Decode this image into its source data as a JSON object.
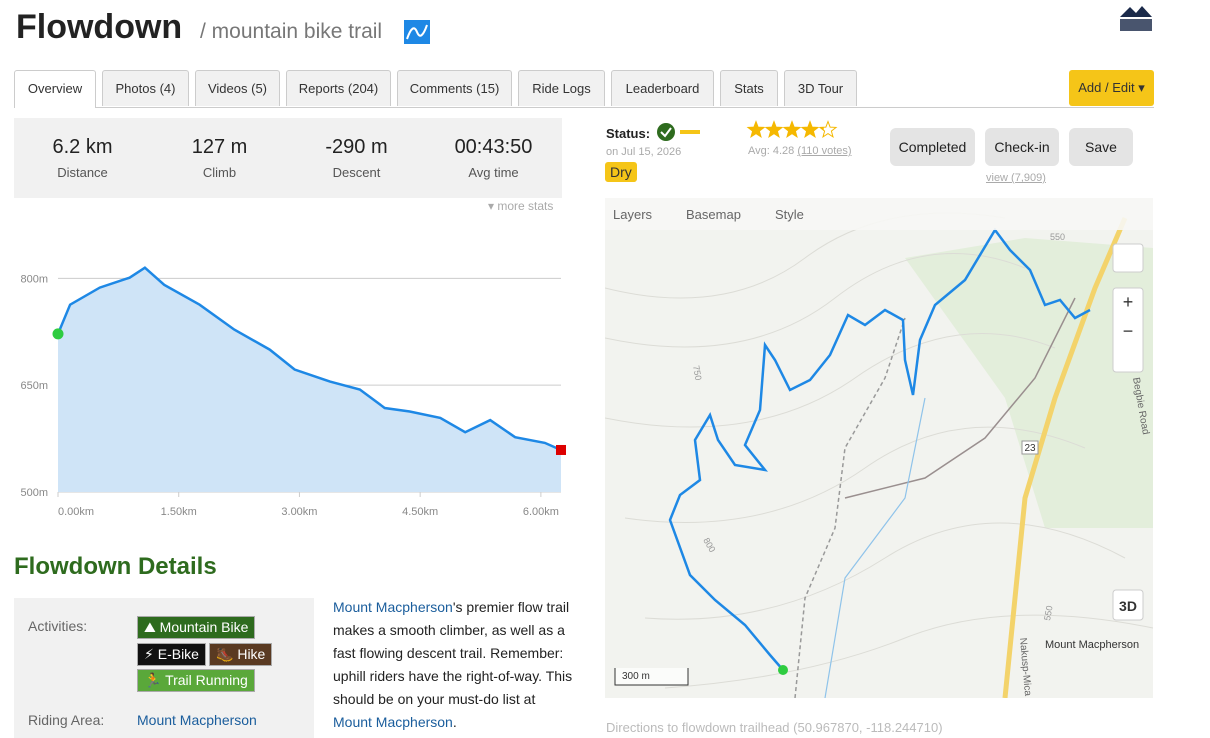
{
  "header": {
    "title": "Flowdown",
    "subtitle": "/ mountain bike trail"
  },
  "tabs": [
    "Overview",
    "Photos (4)",
    "Videos (5)",
    "Reports (204)",
    "Comments (15)",
    "Ride Logs",
    "Leaderboard",
    "Stats",
    "3D Tour"
  ],
  "add_edit": "Add / Edit",
  "stats": [
    {
      "value": "6.2 km",
      "label": "Distance"
    },
    {
      "value": "127 m",
      "label": "Climb"
    },
    {
      "value": "-290 m",
      "label": "Descent"
    },
    {
      "value": "00:43:50",
      "label": "Avg time"
    }
  ],
  "more_stats": "more stats",
  "elevation_chart": {
    "type": "line",
    "x": [
      0.0,
      0.15,
      0.52,
      0.89,
      1.08,
      1.32,
      1.76,
      2.19,
      2.63,
      2.94,
      3.38,
      3.75,
      4.06,
      4.37,
      4.75,
      5.06,
      5.37,
      5.68,
      6.05,
      6.25
    ],
    "values": [
      722,
      763,
      787,
      801,
      815,
      791,
      763,
      728,
      700,
      672,
      655,
      644,
      618,
      613,
      604,
      584,
      601,
      577,
      569,
      559
    ],
    "color": "#1e88e5",
    "fill": "#cfe4f7",
    "xlim": [
      0,
      6.25
    ],
    "ylim": [
      500,
      830
    ],
    "xticks": [
      {
        "value": 0,
        "label": "0.00km"
      },
      {
        "value": 1.5,
        "label": "1.50km"
      },
      {
        "value": 3,
        "label": "3.00km"
      },
      {
        "value": 4.5,
        "label": "4.50km"
      },
      {
        "value": 6,
        "label": "6.00km"
      }
    ],
    "yticks": [
      {
        "value": 500,
        "label": "500m"
      },
      {
        "value": 650,
        "label": "650m"
      },
      {
        "value": 800,
        "label": "800m"
      }
    ],
    "grid": true
  },
  "details_title": "Flowdown Details",
  "info": {
    "activities_label": "Activities:",
    "activities": [
      "Mountain Bike",
      "E-Bike",
      "Hike",
      "Trail Running"
    ],
    "riding_area_label": "Riding Area:",
    "riding_area": "Mount Macpherson"
  },
  "description": {
    "link1": "Mount Macpherson",
    "text1": "'s premier flow trail makes a smooth climber, as well as a fast flowing descent trail. Remember: uphill riders have the right-of-way. This should be on your must-do list at ",
    "link2": "Mount Macpherson",
    "text2": "."
  },
  "status": {
    "label": "Status:",
    "date": "on Jul 15, 2026",
    "condition": "Dry"
  },
  "rating": {
    "stars": 4.28,
    "avg": "Avg: 4.28",
    "votes": "(110 votes)"
  },
  "buttons": [
    "Completed",
    "Check-in",
    "Save"
  ],
  "views": "view (7,909)",
  "map": {
    "menus": [
      "Layers",
      "Basemap",
      "Style"
    ],
    "button_3d": "3D",
    "scale": "300 m",
    "place": "Mount Macpherson",
    "road1": "Begbie Road",
    "road2": "Nakusp-Mica",
    "highway": "23",
    "contours": [
      "550",
      "750",
      "800",
      "550"
    ]
  },
  "directions": "Directions to flowdown trailhead (50.967870, -118.244710)"
}
